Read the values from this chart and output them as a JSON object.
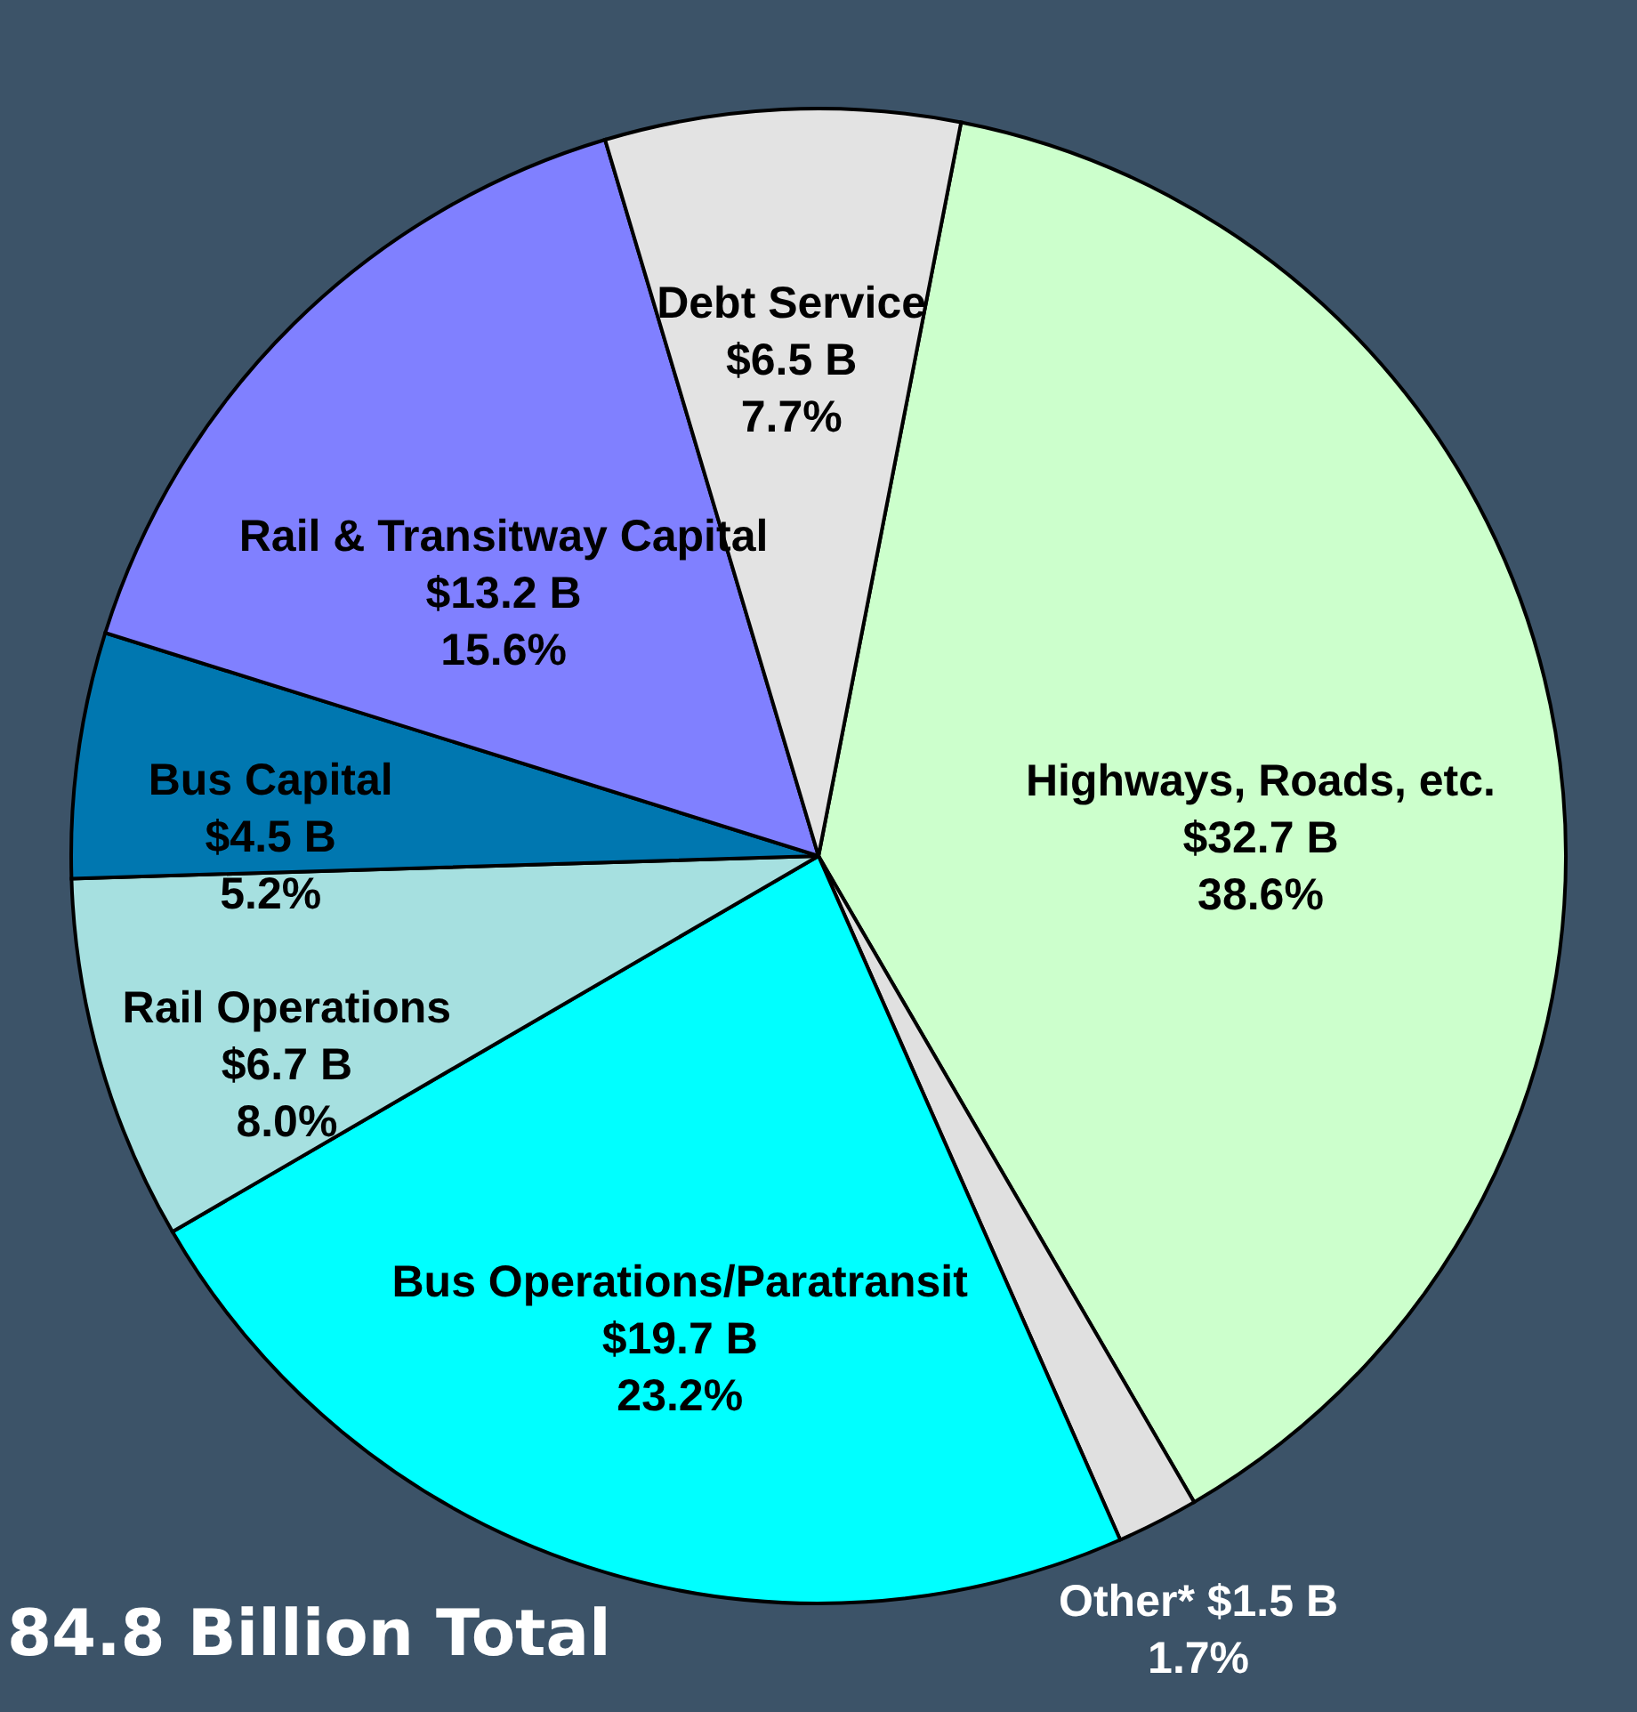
{
  "chart_data": {
    "type": "pie",
    "title": "84.8 Billion Total",
    "categories": [
      "Highways, Roads, etc.",
      "Other*",
      "Bus Operations/Paratransit",
      "Rail Operations",
      "Bus Capital",
      "Rail & Transitway Capital",
      "Debt Service"
    ],
    "values": [
      32.7,
      1.5,
      19.7,
      6.7,
      4.5,
      13.2,
      6.5
    ],
    "value_labels": [
      "$32.7 B\n38.6%",
      "$1.5 B\n1.7%",
      "$19.7 B\n23.2%",
      "$6.7 B\n8.0%",
      "$4.5 B\n5.2%",
      "$13.2 B\n15.6%",
      "$6.5 B\n7.7%"
    ],
    "colors": [
      "#ccffcc",
      "#e0e0e0",
      "#00ffff",
      "#a6e0e0",
      "#0077b0",
      "#8080ff",
      "#e3e3e3"
    ]
  }
}
